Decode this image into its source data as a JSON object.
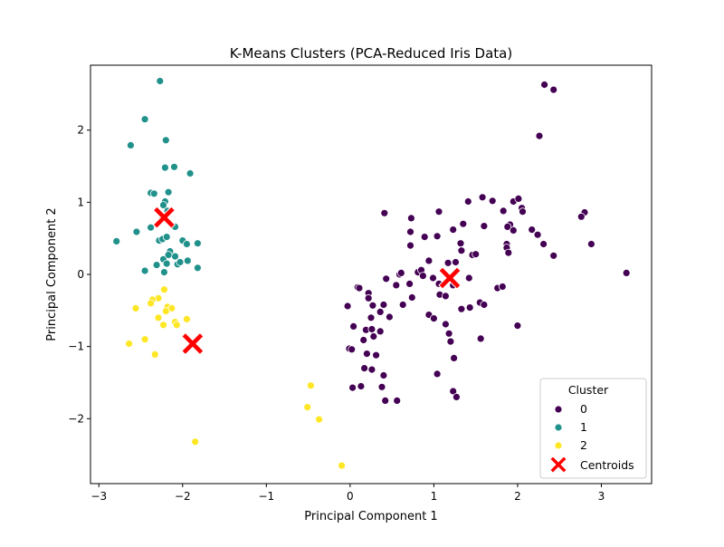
{
  "chart_data": {
    "type": "scatter",
    "title": "K-Means Clusters (PCA-Reduced Iris Data)",
    "xlabel": "Principal Component 1",
    "ylabel": "Principal Component 2",
    "xlim": [
      -3.1,
      3.6
    ],
    "ylim": [
      -2.9,
      2.9
    ],
    "xticks": [
      -3,
      -2,
      -1,
      0,
      1,
      2,
      3
    ],
    "yticks": [
      -2,
      -1,
      0,
      1,
      2
    ],
    "xtick_labels": [
      "−3",
      "−2",
      "−1",
      "0",
      "1",
      "2",
      "3"
    ],
    "ytick_labels": [
      "−2",
      "−1",
      "0",
      "1",
      "2"
    ],
    "grid": false,
    "legend": {
      "title": "Cluster",
      "placement": "lower-right"
    },
    "series": [
      {
        "name": "0",
        "color": "#440154",
        "points": [
          [
            2.32,
            2.63
          ],
          [
            2.43,
            2.56
          ],
          [
            2.26,
            1.92
          ],
          [
            0.41,
            0.85
          ],
          [
            0.73,
            0.78
          ],
          [
            1.06,
            0.87
          ],
          [
            1.41,
            1.01
          ],
          [
            1.58,
            1.07
          ],
          [
            1.7,
            1.02
          ],
          [
            1.95,
            1.01
          ],
          [
            2.01,
            1.05
          ],
          [
            1.83,
            0.88
          ],
          [
            2.05,
            0.92
          ],
          [
            2.06,
            0.87
          ],
          [
            1.91,
            0.69
          ],
          [
            1.88,
            0.66
          ],
          [
            1.95,
            0.61
          ],
          [
            2.24,
            0.55
          ],
          [
            2.8,
            0.86
          ],
          [
            2.76,
            0.8
          ],
          [
            2.88,
            0.42
          ],
          [
            2.31,
            0.42
          ],
          [
            2.43,
            0.26
          ],
          [
            1.87,
            0.42
          ],
          [
            1.87,
            0.37
          ],
          [
            1.89,
            0.3
          ],
          [
            2.17,
            0.62
          ],
          [
            3.3,
            0.02
          ],
          [
            0.72,
            0.59
          ],
          [
            0.89,
            0.52
          ],
          [
            0.72,
            0.4
          ],
          [
            1.04,
            0.53
          ],
          [
            1.23,
            0.62
          ],
          [
            1.32,
            0.43
          ],
          [
            1.35,
            0.7
          ],
          [
            1.46,
            0.27
          ],
          [
            1.5,
            0.28
          ],
          [
            1.6,
            0.67
          ],
          [
            0.94,
            0.19
          ],
          [
            1.17,
            0.16
          ],
          [
            1.26,
            0.17
          ],
          [
            1.33,
            0.33
          ],
          [
            1.42,
            -0.05
          ],
          [
            1.55,
            -0.39
          ],
          [
            1.76,
            -0.19
          ],
          [
            1.82,
            -0.17
          ],
          [
            2.0,
            -0.71
          ],
          [
            0.59,
            0.0
          ],
          [
            0.61,
            0.02
          ],
          [
            0.81,
            0.03
          ],
          [
            0.85,
            0.06
          ],
          [
            0.87,
            -0.02
          ],
          [
            0.99,
            -0.05
          ],
          [
            1.06,
            -0.13
          ],
          [
            1.07,
            -0.28
          ],
          [
            1.14,
            -0.3
          ],
          [
            1.23,
            -0.15
          ],
          [
            0.43,
            -0.06
          ],
          [
            0.55,
            -0.15
          ],
          [
            0.71,
            -0.13
          ],
          [
            0.74,
            -0.32
          ],
          [
            0.63,
            -0.42
          ],
          [
            0.4,
            -0.42
          ],
          [
            0.09,
            -0.18
          ],
          [
            0.11,
            -0.19
          ],
          [
            0.22,
            -0.26
          ],
          [
            0.22,
            -0.33
          ],
          [
            0.27,
            -0.43
          ],
          [
            0.36,
            -0.52
          ],
          [
            0.25,
            -0.6
          ],
          [
            0.47,
            -0.59
          ],
          [
            0.94,
            -0.56
          ],
          [
            1.0,
            -0.61
          ],
          [
            1.14,
            -0.69
          ],
          [
            1.18,
            -0.82
          ],
          [
            1.2,
            -0.93
          ],
          [
            1.24,
            -1.16
          ],
          [
            1.33,
            -0.48
          ],
          [
            1.43,
            -0.46
          ],
          [
            1.56,
            -0.89
          ],
          [
            1.6,
            -0.42
          ],
          [
            0.19,
            -0.77
          ],
          [
            0.26,
            -0.76
          ],
          [
            0.28,
            -0.86
          ],
          [
            0.36,
            -0.79
          ],
          [
            0.04,
            -0.72
          ],
          [
            -0.03,
            -0.44
          ],
          [
            0.16,
            -0.91
          ],
          [
            0.2,
            -1.1
          ],
          [
            -0.01,
            -1.03
          ],
          [
            0.02,
            -1.04
          ],
          [
            0.31,
            -1.12
          ],
          [
            0.4,
            -1.4
          ],
          [
            0.17,
            -1.3
          ],
          [
            0.26,
            -1.32
          ],
          [
            0.03,
            -1.57
          ],
          [
            0.13,
            -1.55
          ],
          [
            0.38,
            -1.56
          ],
          [
            0.42,
            -1.75
          ],
          [
            0.56,
            -1.75
          ],
          [
            1.04,
            -1.38
          ],
          [
            1.23,
            -1.62
          ],
          [
            1.27,
            -1.7
          ]
        ]
      },
      {
        "name": "1",
        "color": "#21918c",
        "points": [
          [
            -2.27,
            2.68
          ],
          [
            -2.45,
            2.15
          ],
          [
            -2.62,
            1.79
          ],
          [
            -2.2,
            1.86
          ],
          [
            -2.21,
            1.48
          ],
          [
            -2.1,
            1.49
          ],
          [
            -1.91,
            1.4
          ],
          [
            -2.38,
            1.13
          ],
          [
            -2.34,
            1.12
          ],
          [
            -2.17,
            1.14
          ],
          [
            -2.21,
            1.01
          ],
          [
            -2.23,
            0.96
          ],
          [
            -2.18,
            0.88
          ],
          [
            -2.25,
            0.76
          ],
          [
            -2.38,
            0.65
          ],
          [
            -2.55,
            0.59
          ],
          [
            -2.79,
            0.46
          ],
          [
            -2.09,
            0.66
          ],
          [
            -2.0,
            0.47
          ],
          [
            -1.95,
            0.42
          ],
          [
            -1.82,
            0.43
          ],
          [
            -2.28,
            0.47
          ],
          [
            -2.24,
            0.49
          ],
          [
            -2.19,
            0.52
          ],
          [
            -2.15,
            0.32
          ],
          [
            -2.09,
            0.25
          ],
          [
            -2.23,
            0.21
          ],
          [
            -2.17,
            0.27
          ],
          [
            -2.19,
            0.15
          ],
          [
            -2.31,
            0.13
          ],
          [
            -2.06,
            0.14
          ],
          [
            -2.03,
            0.17
          ],
          [
            -1.94,
            0.19
          ],
          [
            -2.45,
            0.05
          ],
          [
            -2.22,
            0.03
          ],
          [
            -1.82,
            0.09
          ]
        ]
      },
      {
        "name": "2",
        "color": "#fde725",
        "points": [
          [
            -2.22,
            -0.21
          ],
          [
            -2.29,
            -0.33
          ],
          [
            -2.36,
            -0.35
          ],
          [
            -2.38,
            -0.4
          ],
          [
            -2.56,
            -0.47
          ],
          [
            -2.18,
            -0.45
          ],
          [
            -2.13,
            -0.47
          ],
          [
            -2.2,
            -0.51
          ],
          [
            -1.95,
            -0.62
          ],
          [
            -2.29,
            -0.6
          ],
          [
            -2.09,
            -0.66
          ],
          [
            -2.07,
            -0.7
          ],
          [
            -2.23,
            -0.7
          ],
          [
            -2.45,
            -0.9
          ],
          [
            -2.64,
            -0.96
          ],
          [
            -2.33,
            -1.11
          ],
          [
            -1.85,
            -2.32
          ],
          [
            -0.47,
            -1.54
          ],
          [
            -0.51,
            -1.84
          ],
          [
            -0.37,
            -2.01
          ],
          [
            -0.1,
            -2.65
          ]
        ]
      }
    ],
    "centroids": {
      "name": "Centroids",
      "color": "#ff0000",
      "points": [
        [
          -2.22,
          0.79
        ],
        [
          -1.88,
          -0.96
        ],
        [
          1.19,
          -0.05
        ]
      ]
    }
  }
}
